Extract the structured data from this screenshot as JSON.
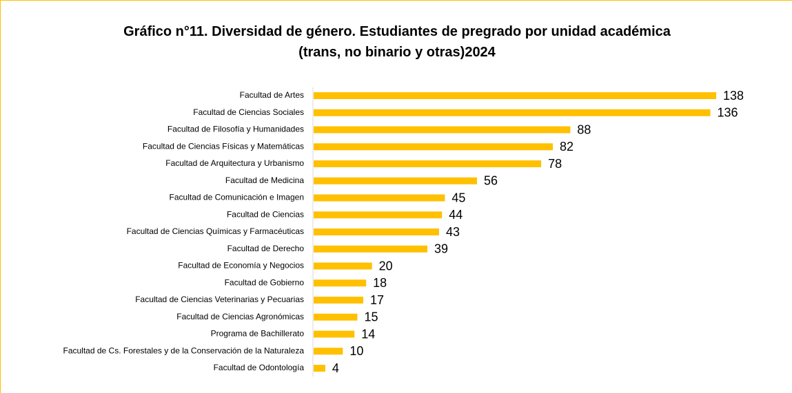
{
  "chart_data": {
    "type": "bar",
    "orientation": "horizontal",
    "title": "Gráfico n°11. Diversidad de género. Estudiantes de pregrado por unidad académica (trans, no binario y otras)2024",
    "categories": [
      "Facultad de Artes",
      "Facultad de Ciencias Sociales",
      "Facultad de Filosofía y Humanidades",
      "Facultad de Ciencias Físicas y Matemáticas",
      "Facultad de Arquitectura y Urbanismo",
      "Facultad de Medicina",
      "Facultad de Comunicación e Imagen",
      "Facultad de Ciencias",
      "Facultad de Ciencias Químicas y Farmacéuticas",
      "Facultad de Derecho",
      "Facultad de Economía y Negocios",
      "Facultad de Gobierno",
      "Facultad de Ciencias Veterinarias y Pecuarias",
      "Facultad de Ciencias Agronómicas",
      "Programa de Bachillerato",
      "Facultad de Cs. Forestales y de la Conservación de la Naturaleza",
      "Facultad de Odontología"
    ],
    "values": [
      138,
      136,
      88,
      82,
      78,
      56,
      45,
      44,
      43,
      39,
      20,
      18,
      17,
      15,
      14,
      10,
      4
    ],
    "color": "#ffc000"
  }
}
